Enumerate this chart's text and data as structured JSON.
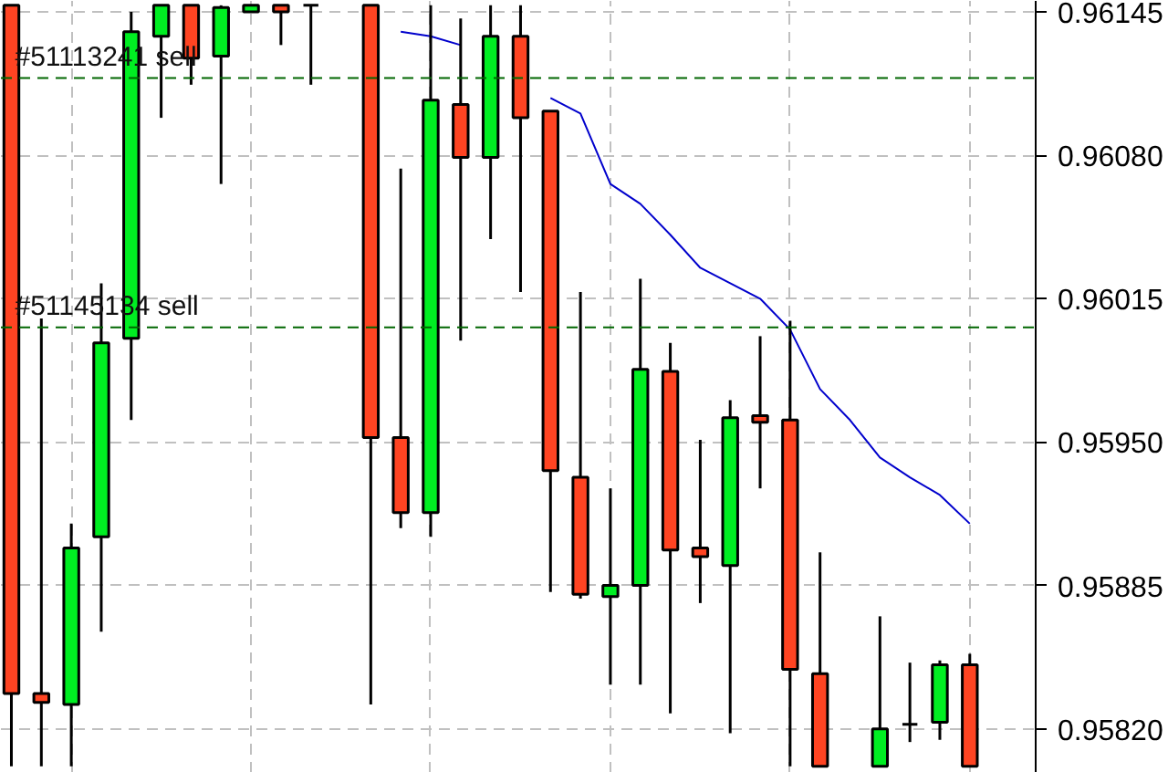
{
  "chart_data": {
    "type": "candlestick",
    "categories": [
      null,
      null,
      null,
      null,
      null,
      null,
      null,
      null,
      null,
      null,
      null,
      null,
      null,
      null,
      null,
      null,
      null,
      null,
      null,
      null,
      null,
      null,
      null,
      null,
      null,
      null,
      null,
      null,
      null,
      null,
      null,
      null,
      null,
      null,
      null
    ],
    "ohlc": [
      [
        0.96148,
        0.96148,
        0.95803,
        0.95836
      ],
      [
        0.95836,
        0.96006,
        0.95803,
        0.95832
      ],
      [
        0.95831,
        0.95913,
        0.95803,
        0.95902
      ],
      [
        0.95907,
        0.96022,
        0.95864,
        0.95995
      ],
      [
        0.95997,
        0.96145,
        0.9596,
        0.96136
      ],
      [
        0.96134,
        0.96148,
        0.96097,
        0.96148
      ],
      [
        0.96148,
        0.96148,
        0.96112,
        0.96124
      ],
      [
        0.96125,
        0.96148,
        0.96067,
        0.96147
      ],
      [
        0.96145,
        0.96148,
        0.96145,
        0.96148
      ],
      [
        0.96148,
        0.96148,
        0.9613,
        0.96145
      ],
      [
        0.96148,
        0.96148,
        0.96112,
        0.96148
      ],
      null,
      [
        0.96148,
        0.96148,
        0.95831,
        0.95952
      ],
      [
        0.95952,
        0.96074,
        0.95911,
        0.95918
      ],
      [
        0.95918,
        0.96148,
        0.95907,
        0.96105
      ],
      [
        0.96103,
        0.96142,
        0.95996,
        0.96079
      ],
      [
        0.96079,
        0.96148,
        0.96042,
        0.96134
      ],
      [
        0.96134,
        0.96148,
        0.96018,
        0.96097
      ],
      [
        0.961,
        0.961,
        0.95882,
        0.95937
      ],
      [
        0.95934,
        0.96018,
        0.95879,
        0.95881
      ],
      [
        0.9588,
        0.95929,
        0.9584,
        0.95885
      ],
      [
        0.95885,
        0.96024,
        0.9584,
        0.95983
      ],
      [
        0.95982,
        0.95995,
        0.95827,
        0.95901
      ],
      [
        0.95902,
        0.95951,
        0.95877,
        0.95898
      ],
      [
        0.95894,
        0.95969,
        0.95818,
        0.95961
      ],
      [
        0.95962,
        0.95998,
        0.95929,
        0.95959
      ],
      [
        0.9596,
        0.96005,
        0.95803,
        0.95847
      ],
      [
        0.95845,
        0.959,
        0.95803,
        0.95803
      ],
      null,
      [
        0.95803,
        0.95871,
        0.95803,
        0.9582
      ],
      [
        0.95822,
        0.9585,
        0.95814,
        0.95822
      ],
      [
        0.95823,
        0.95851,
        0.95815,
        0.95849
      ],
      [
        0.95849,
        0.95854,
        0.95803,
        0.95803
      ],
      null,
      null
    ],
    "colors": [
      "#ff4422",
      "#ff4422",
      "#00ee22",
      "#00ee22",
      "#00ee22",
      "#00ee22",
      "#ff4422",
      "#00ee22",
      "#00ee22",
      "#ff4422",
      "#000000",
      null,
      "#ff4422",
      "#ff4422",
      "#00ee22",
      "#ff4422",
      "#00ee22",
      "#ff4422",
      "#ff4422",
      "#ff4422",
      "#00ee22",
      "#00ee22",
      "#ff4422",
      "#ff4422",
      "#00ee22",
      "#ff4422",
      "#ff4422",
      "#ff4422",
      null,
      "#00ee22",
      "#000000",
      "#00ee22",
      "#ff4422",
      null,
      null
    ],
    "series": [
      {
        "type": "line",
        "color": "#0000cc",
        "values": [
          null,
          null,
          null,
          null,
          null,
          null,
          null,
          null,
          null,
          null,
          null,
          null,
          null,
          0.96136,
          0.96134,
          0.9613,
          null,
          null,
          0.96106,
          0.96099,
          0.96067,
          0.96058,
          0.96044,
          0.96029,
          0.96022,
          0.96015,
          0.96001,
          0.95974,
          0.9596,
          0.95943,
          0.95934,
          0.95926,
          0.95913,
          null,
          null
        ]
      }
    ],
    "ylim": [
      0.958,
      0.9615
    ],
    "yticks": [
      {
        "value": 0.96145,
        "label": "0.96145"
      },
      {
        "value": 0.9608,
        "label": "0.96080"
      },
      {
        "value": 0.96015,
        "label": "0.96015"
      },
      {
        "value": 0.9595,
        "label": "0.95950"
      },
      {
        "value": 0.95885,
        "label": "0.95885"
      },
      {
        "value": 0.9582,
        "label": "0.95820"
      }
    ],
    "ref_lines": [
      {
        "axis": "y",
        "value": 0.96115,
        "label": "#51113241 sell",
        "color": "#006600",
        "line_style": "dashed"
      },
      {
        "axis": "y",
        "value": 0.96002,
        "label": "#51145134 sell",
        "color": "#006600",
        "line_style": "dashed"
      }
    ],
    "grid": true
  }
}
